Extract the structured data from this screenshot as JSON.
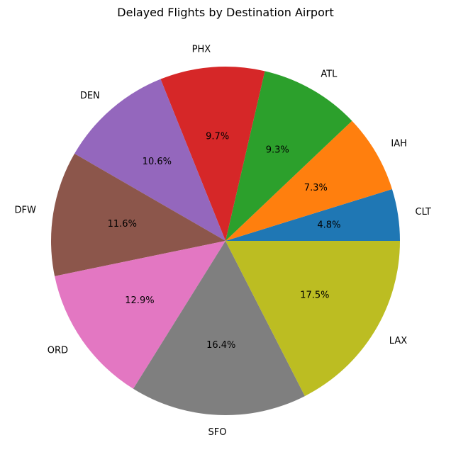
{
  "chart_data": {
    "type": "pie",
    "title": "Delayed Flights by Destination Airport",
    "categories": [
      "CLT",
      "IAH",
      "ATL",
      "PHX",
      "DEN",
      "DFW",
      "ORD",
      "SFO",
      "LAX"
    ],
    "values": [
      4.8,
      7.3,
      9.3,
      9.7,
      10.6,
      11.6,
      12.9,
      16.4,
      17.5
    ],
    "value_labels": [
      "4.8%",
      "7.3%",
      "9.3%",
      "9.7%",
      "10.6%",
      "11.6%",
      "12.9%",
      "16.4%",
      "17.5%"
    ],
    "colors": [
      "#1f77b4",
      "#ff7f0e",
      "#2ca02c",
      "#d62728",
      "#9467bd",
      "#8c564b",
      "#e377c2",
      "#7f7f7f",
      "#bcbd22"
    ],
    "start_angle": 0,
    "direction": "counterclockwise",
    "legend": "none"
  }
}
